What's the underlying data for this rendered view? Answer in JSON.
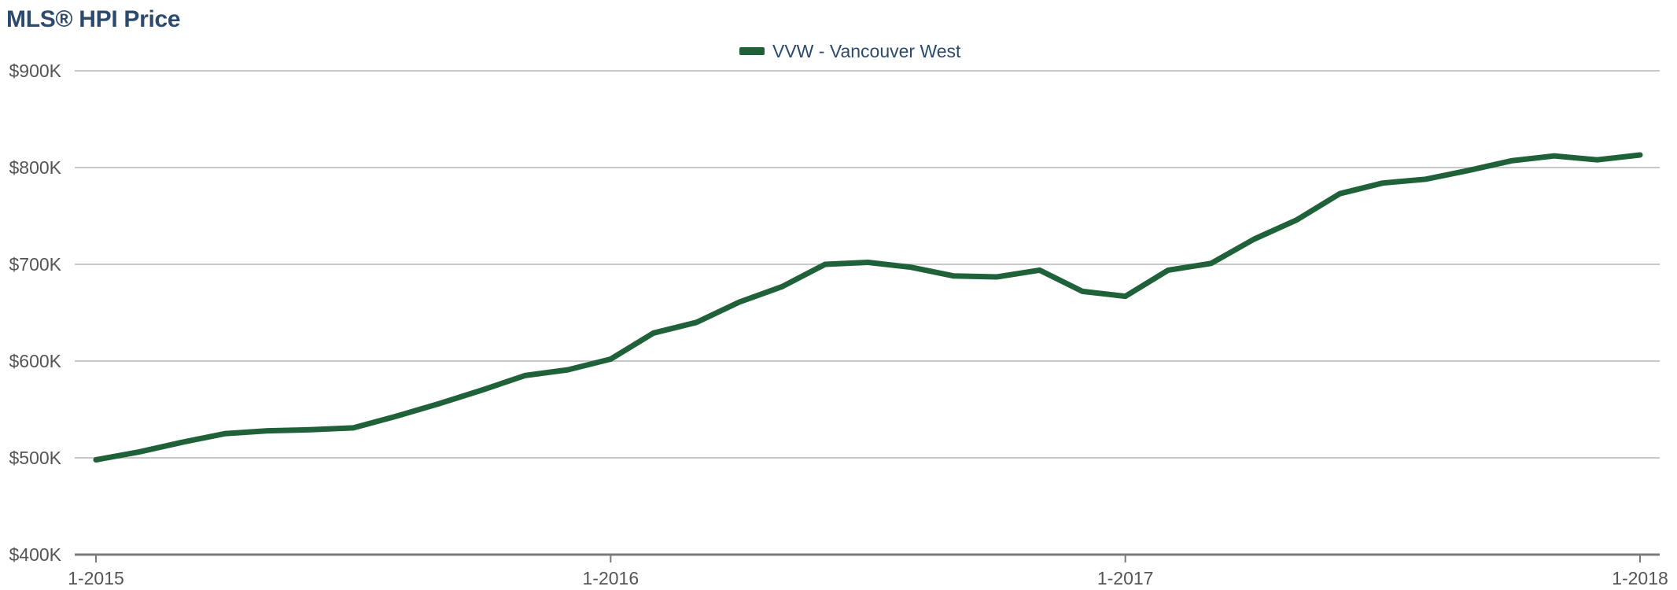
{
  "chart_data": {
    "type": "line",
    "title": "MLS® HPI Price",
    "xlabel": "",
    "ylabel": "",
    "ylim": [
      400000,
      900000
    ],
    "yticks": [
      400000,
      500000,
      600000,
      700000,
      800000,
      900000
    ],
    "ytick_labels": [
      "$400K",
      "$500K",
      "$600K",
      "$700K",
      "$800K",
      "$900K"
    ],
    "xlim": [
      0,
      36
    ],
    "xticks": [
      0,
      12,
      24,
      36
    ],
    "xtick_labels": [
      "1-2015",
      "1-2016",
      "1-2017",
      "1-2018"
    ],
    "grid": true,
    "legend_position": "top-center",
    "series": [
      {
        "name": "VVW - Vancouver West",
        "color": "#1f6138",
        "x": [
          "1-2015",
          "2-2015",
          "3-2015",
          "4-2015",
          "5-2015",
          "6-2015",
          "7-2015",
          "8-2015",
          "9-2015",
          "10-2015",
          "11-2015",
          "12-2015",
          "1-2016",
          "2-2016",
          "3-2016",
          "4-2016",
          "5-2016",
          "6-2016",
          "7-2016",
          "8-2016",
          "9-2016",
          "10-2016",
          "11-2016",
          "12-2016",
          "1-2017",
          "2-2017",
          "3-2017",
          "4-2017",
          "5-2017",
          "6-2017",
          "7-2017",
          "8-2017",
          "9-2017",
          "10-2017",
          "11-2017",
          "12-2017",
          "1-2018"
        ],
        "values": [
          498000,
          506000,
          516000,
          525000,
          528000,
          529000,
          531000,
          543000,
          556000,
          570000,
          585000,
          591000,
          602000,
          629000,
          640000,
          661000,
          677000,
          700000,
          702000,
          697000,
          688000,
          687000,
          694000,
          672000,
          667000,
          694000,
          701000,
          726000,
          746000,
          773000,
          784000,
          788000,
          797000,
          807000,
          812000,
          808000,
          813000
        ]
      }
    ]
  }
}
